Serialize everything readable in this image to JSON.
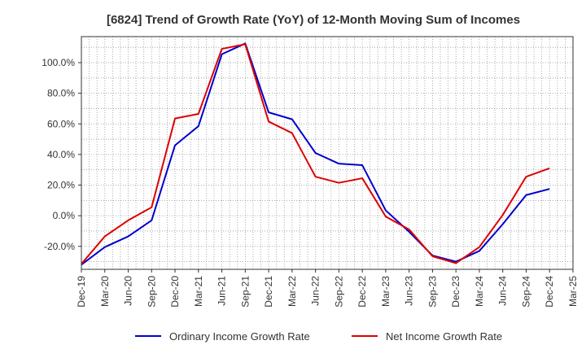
{
  "chart_data": {
    "type": "line",
    "title": "[6824]  Trend of Growth Rate (YoY) of 12-Month Moving Sum of Incomes",
    "xlabel": "",
    "ylabel": "",
    "ylim": [
      -35,
      117
    ],
    "yticks": [
      -20,
      0,
      20,
      40,
      60,
      80,
      100
    ],
    "ytick_labels": [
      "-20.0%",
      "0.0%",
      "20.0%",
      "40.0%",
      "60.0%",
      "80.0%",
      "100.0%"
    ],
    "x": [
      "Dec-19",
      "Mar-20",
      "Jun-20",
      "Sep-20",
      "Dec-20",
      "Mar-21",
      "Jun-21",
      "Sep-21",
      "Dec-21",
      "Mar-22",
      "Jun-22",
      "Sep-22",
      "Dec-22",
      "Mar-23",
      "Jun-23",
      "Sep-23",
      "Dec-23",
      "Mar-24",
      "Jun-24",
      "Sep-24",
      "Dec-24",
      "Mar-25"
    ],
    "grid": true,
    "legend_position": "bottom",
    "series": [
      {
        "name": "Ordinary Income Growth Rate",
        "color": "#0000cc",
        "values": [
          -32.0,
          -20.5,
          -13.5,
          -3.0,
          46.0,
          58.5,
          105.5,
          112.5,
          67.5,
          63.0,
          41.0,
          34.0,
          33.0,
          3.5,
          -10.5,
          -26.0,
          -30.0,
          -23.0,
          -5.5,
          13.5,
          17.5,
          null
        ]
      },
      {
        "name": "Net Income Growth Rate",
        "color": "#dd0000",
        "values": [
          -31.5,
          -13.5,
          -3.0,
          5.5,
          63.5,
          66.5,
          109.0,
          112.0,
          61.5,
          54.0,
          25.5,
          21.5,
          24.5,
          -0.5,
          -9.0,
          -26.5,
          -31.0,
          -20.5,
          0.5,
          25.5,
          31.0,
          null
        ]
      }
    ]
  }
}
